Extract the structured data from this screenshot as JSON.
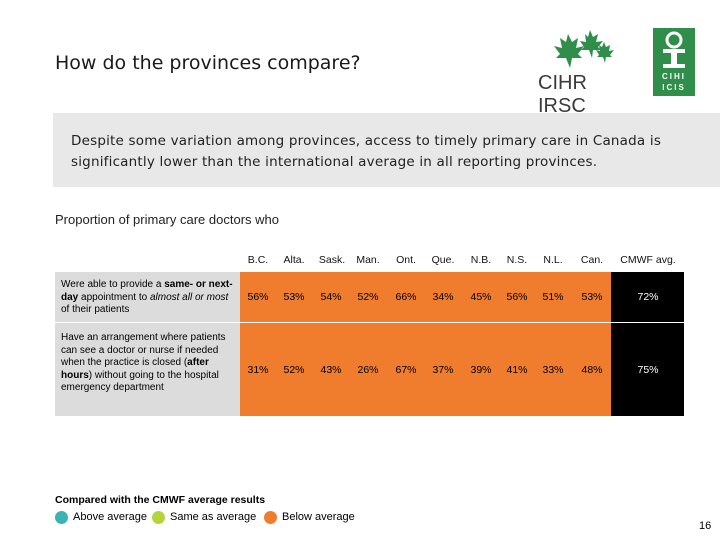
{
  "slide": {
    "title": "How do the provinces compare?",
    "page_number": "16"
  },
  "logos": {
    "cihr": "CIHR IRSC",
    "cihi_top": "CIHI",
    "cihi_bottom": "ICIS"
  },
  "callout": {
    "text": "Despite some variation among provinces, access to timely primary care in Canada is significantly lower than the international average in all reporting provinces."
  },
  "table": {
    "subtitle": "Proportion of primary care doctors who",
    "columns": [
      "B.C.",
      "Alta.",
      "Sask.",
      "Man.",
      "Ont.",
      "Que.",
      "N.B.",
      "N.S.",
      "N.L.",
      "Can.",
      "CMWF avg."
    ],
    "rows": [
      {
        "label_parts": [
          "Were able to provide a ",
          "same- or next-day",
          " appointment to ",
          "almost all or most",
          " of their patients"
        ],
        "values": [
          "56%",
          "53%",
          "54%",
          "52%",
          "66%",
          "34%",
          "45%",
          "56%",
          "51%",
          "53%",
          "72%"
        ]
      },
      {
        "label_parts": [
          "Have an arrangement where patients can see a doctor or nurse if needed when the practice is closed (",
          "after hours",
          ") without going to the hospital emergency department"
        ],
        "values": [
          "31%",
          "52%",
          "43%",
          "26%",
          "67%",
          "37%",
          "39%",
          "41%",
          "33%",
          "48%",
          "75%"
        ]
      }
    ]
  },
  "legend": {
    "title": "Compared with the CMWF average results",
    "items": [
      {
        "label": "Above average",
        "color": "#3ab3b7"
      },
      {
        "label": "Same as average",
        "color": "#b5d43c"
      },
      {
        "label": "Below average",
        "color": "#ef7d2d"
      }
    ]
  },
  "colors": {
    "below_average": "#ef7d2d",
    "cmwf_column": "#000000",
    "label_background": "#dcdcdc",
    "callout_background": "#e8e8e8"
  }
}
